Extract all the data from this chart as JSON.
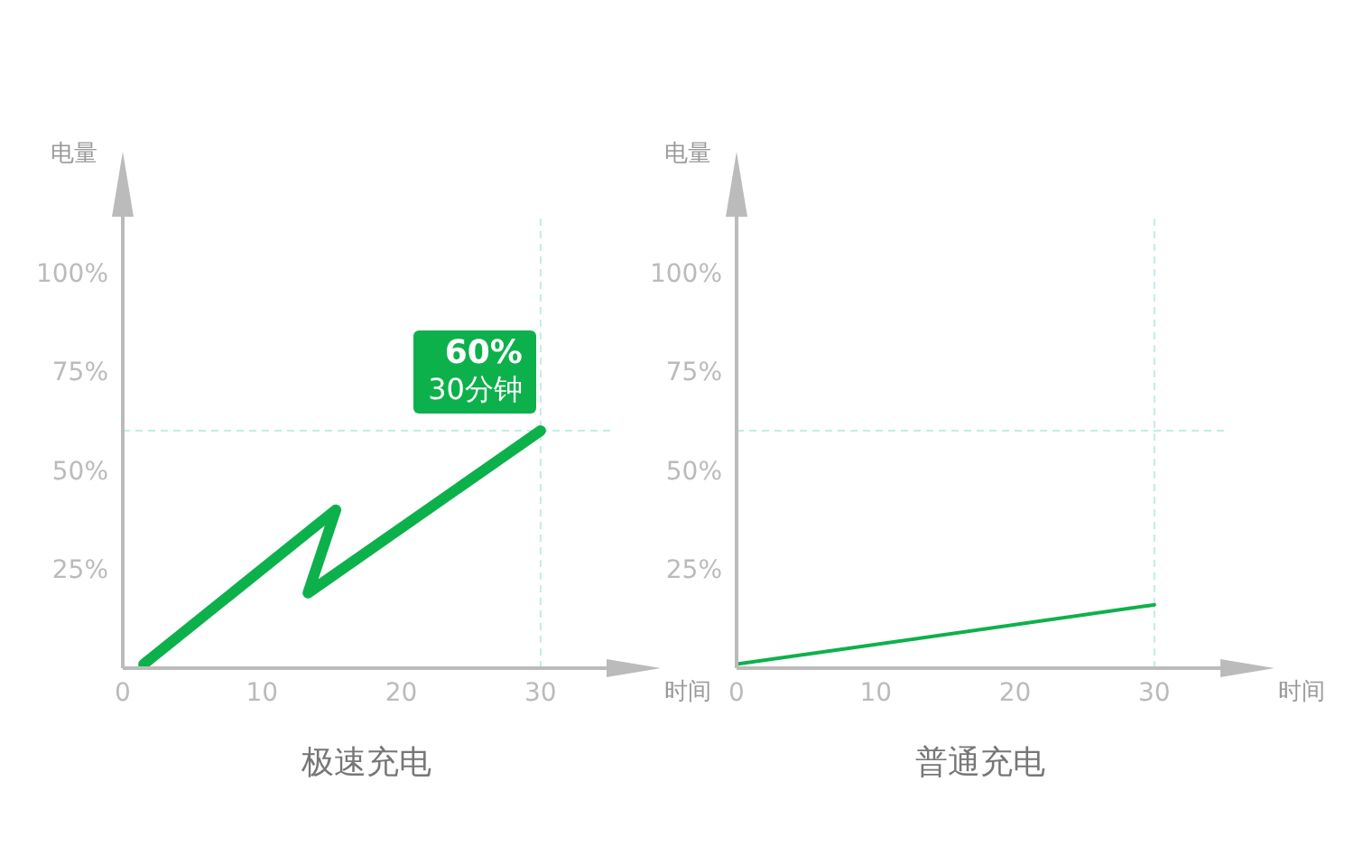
{
  "chart_data": [
    {
      "type": "line",
      "title": "极速充电",
      "xlabel": "时间",
      "ylabel": "电量",
      "marker": "none",
      "xlim": [
        0,
        35
      ],
      "xticks": [
        0,
        10,
        20,
        30
      ],
      "ylim": [
        0,
        115
      ],
      "yticks": [
        {
          "value": 25,
          "label": "25%"
        },
        {
          "value": 50,
          "label": "50%"
        },
        {
          "value": 75,
          "label": "75%"
        },
        {
          "value": 100,
          "label": "100%"
        }
      ],
      "series": [
        {
          "color": "#0db14b",
          "x": [
            1.5,
            15.3,
            13.3,
            30
          ],
          "values": [
            1,
            40,
            19,
            60
          ]
        }
      ],
      "ref_lines": [
        {
          "axis": "x",
          "value": 30,
          "color": "#bfeee6",
          "line_style": "dashed"
        },
        {
          "axis": "y",
          "value": 60,
          "color": "#bfeee6",
          "line_style": "dashed"
        }
      ],
      "annotations": [
        {
          "text": "60%",
          "x": 30,
          "y": 60
        },
        "30分钟"
      ]
    },
    {
      "type": "line",
      "title": "普通充电",
      "xlabel": "时间",
      "ylabel": "电量",
      "marker": "none",
      "xlim": [
        0,
        35
      ],
      "xticks": [
        0,
        10,
        20,
        30
      ],
      "ylim": [
        0,
        115
      ],
      "yticks": [
        {
          "value": 25,
          "label": "25%"
        },
        {
          "value": 50,
          "label": "50%"
        },
        {
          "value": 75,
          "label": "75%"
        },
        {
          "value": 100,
          "label": "100%"
        }
      ],
      "series": [
        {
          "color": "#0db14b",
          "x": [
            0,
            30
          ],
          "values": [
            1,
            16
          ]
        }
      ],
      "ref_lines": [
        {
          "axis": "x",
          "value": 30,
          "color": "#bfeee6",
          "line_style": "dashed"
        },
        {
          "axis": "y",
          "value": 60,
          "color": "#bfeee6",
          "line_style": "dashed"
        }
      ]
    }
  ]
}
